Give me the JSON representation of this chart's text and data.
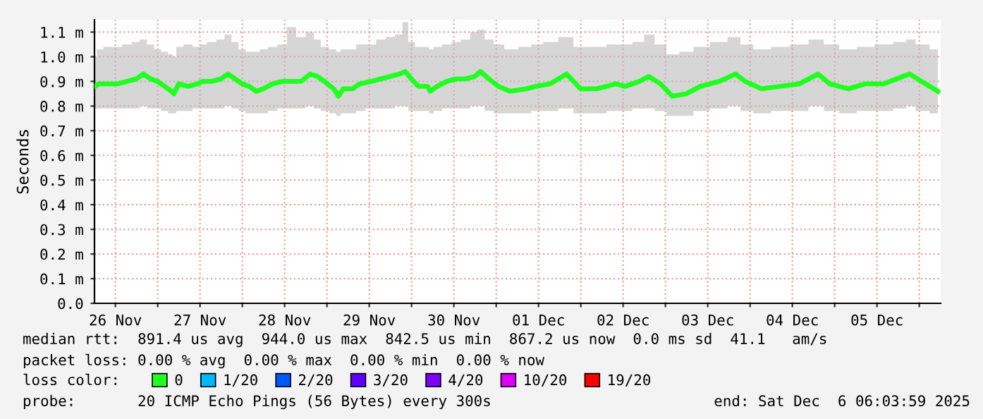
{
  "chart_data": {
    "type": "line",
    "ylabel": "Seconds",
    "legend_title": "loss color:",
    "legend": "bottom",
    "grid": true,
    "marker": "none",
    "line_style": "solid",
    "xlim": [
      "2025-11-26T06:04",
      "2025-12-06T06:04"
    ],
    "xticks": [
      {
        "value": "2025-11-26T12:00",
        "label": "26 Nov"
      },
      {
        "value": "2025-11-27T00:00",
        "label": null
      },
      {
        "value": "2025-11-27T12:00",
        "label": "27 Nov"
      },
      {
        "value": "2025-11-28T00:00",
        "label": null
      },
      {
        "value": "2025-11-28T12:00",
        "label": "28 Nov"
      },
      {
        "value": "2025-11-29T00:00",
        "label": null
      },
      {
        "value": "2025-11-29T12:00",
        "label": "29 Nov"
      },
      {
        "value": "2025-11-30T00:00",
        "label": null
      },
      {
        "value": "2025-11-30T12:00",
        "label": "30 Nov"
      },
      {
        "value": "2025-12-01T00:00",
        "label": null
      },
      {
        "value": "2025-12-01T12:00",
        "label": "01 Dec"
      },
      {
        "value": "2025-12-02T00:00",
        "label": null
      },
      {
        "value": "2025-12-02T12:00",
        "label": "02 Dec"
      },
      {
        "value": "2025-12-03T00:00",
        "label": null
      },
      {
        "value": "2025-12-03T12:00",
        "label": "03 Dec"
      },
      {
        "value": "2025-12-04T00:00",
        "label": null
      },
      {
        "value": "2025-12-04T12:00",
        "label": "04 Dec"
      },
      {
        "value": "2025-12-05T00:00",
        "label": null
      },
      {
        "value": "2025-12-05T12:00",
        "label": "05 Dec"
      },
      {
        "value": "2025-12-06T00:00",
        "label": null
      }
    ],
    "ylim": [
      0,
      1.15
    ],
    "yticks": [
      {
        "value": 0,
        "label": "0.0"
      },
      {
        "value": 0.1,
        "label": "0.1 m"
      },
      {
        "value": 0.2,
        "label": "0.2 m"
      },
      {
        "value": 0.3,
        "label": "0.3 m"
      },
      {
        "value": 0.4,
        "label": "0.4 m"
      },
      {
        "value": 0.5,
        "label": "0.5 m"
      },
      {
        "value": 0.6,
        "label": "0.6 m"
      },
      {
        "value": 0.7,
        "label": "0.7 m"
      },
      {
        "value": 0.8,
        "label": "0.8 m"
      },
      {
        "value": 0.9,
        "label": "0.9 m"
      },
      {
        "value": 1.0,
        "label": "1.0 m"
      },
      {
        "value": 1.1,
        "label": "1.1 m"
      }
    ],
    "x": [
      "2025-11-26T06:10",
      "2025-11-26T07:16",
      "2025-11-26T09:56",
      "2025-11-26T12:36",
      "2025-11-26T15:16",
      "2025-11-26T17:56",
      "2025-11-26T19:56",
      "2025-11-26T21:56",
      "2025-11-26T23:56",
      "2025-11-27T01:56",
      "2025-11-27T03:56",
      "2025-11-27T04:36",
      "2025-11-27T05:56",
      "2025-11-27T08:36",
      "2025-11-27T11:16",
      "2025-11-27T12:36",
      "2025-11-27T15:16",
      "2025-11-27T17:56",
      "2025-11-27T19:56",
      "2025-11-27T21:56",
      "2025-11-27T23:56",
      "2025-11-28T01:56",
      "2025-11-28T03:56",
      "2025-11-28T05:56",
      "2025-11-28T08:36",
      "2025-11-28T11:16",
      "2025-11-28T13:56",
      "2025-11-28T16:36",
      "2025-11-28T19:16",
      "2025-11-28T21:16",
      "2025-11-28T23:16",
      "2025-11-29T01:56",
      "2025-11-29T03:16",
      "2025-11-29T04:36",
      "2025-11-29T07:16",
      "2025-11-29T09:16",
      "2025-11-29T12:36",
      "2025-11-29T15:16",
      "2025-11-29T17:56",
      "2025-11-29T20:36",
      "2025-11-29T22:12",
      "2025-11-29T23:56",
      "2025-11-30T01:56",
      "2025-11-30T04:36",
      "2025-11-30T05:16",
      "2025-11-30T07:16",
      "2025-11-30T09:56",
      "2025-11-30T12:36",
      "2025-11-30T15:16",
      "2025-11-30T17:56",
      "2025-11-30T19:32",
      "2025-11-30T21:56",
      "2025-12-01T00:36",
      "2025-12-01T03:56",
      "2025-12-01T08:36",
      "2025-12-01T11:16",
      "2025-12-01T15:16",
      "2025-12-01T19:56",
      "2025-12-01T23:56",
      "2025-12-02T04:36",
      "2025-12-02T09:56",
      "2025-12-02T12:36",
      "2025-12-02T16:36",
      "2025-12-02T19:16",
      "2025-12-02T22:36",
      "2025-12-03T01:56",
      "2025-12-03T05:56",
      "2025-12-03T09:56",
      "2025-12-03T15:16",
      "2025-12-03T19:56",
      "2025-12-03T22:36",
      "2025-12-04T03:16",
      "2025-12-04T08:36",
      "2025-12-04T13:56",
      "2025-12-04T19:16",
      "2025-12-04T22:36",
      "2025-12-05T03:56",
      "2025-12-05T08:36",
      "2025-12-05T13:56",
      "2025-12-05T19:16",
      "2025-12-05T21:16",
      "2025-12-06T00:36",
      "2025-12-06T05:16"
    ],
    "series": [
      {
        "name": "0",
        "color": "#20ff20",
        "values": [
          0.88,
          0.89,
          0.89,
          0.89,
          0.9,
          0.91,
          0.93,
          0.91,
          0.9,
          0.88,
          0.86,
          0.85,
          0.89,
          0.88,
          0.89,
          0.9,
          0.9,
          0.91,
          0.93,
          0.91,
          0.89,
          0.88,
          0.86,
          0.87,
          0.89,
          0.9,
          0.9,
          0.9,
          0.93,
          0.92,
          0.9,
          0.87,
          0.84,
          0.87,
          0.87,
          0.89,
          0.9,
          0.91,
          0.92,
          0.93,
          0.94,
          0.91,
          0.88,
          0.88,
          0.86,
          0.88,
          0.9,
          0.91,
          0.91,
          0.92,
          0.94,
          0.91,
          0.88,
          0.86,
          0.87,
          0.88,
          0.89,
          0.93,
          0.87,
          0.87,
          0.89,
          0.88,
          0.9,
          0.92,
          0.89,
          0.84,
          0.85,
          0.88,
          0.9,
          0.93,
          0.9,
          0.87,
          0.88,
          0.89,
          0.93,
          0.89,
          0.87,
          0.89,
          0.89,
          0.92,
          0.93,
          0.9,
          0.86
        ],
        "lower": [
          0.79,
          0.79,
          0.79,
          0.79,
          0.79,
          0.79,
          0.8,
          0.79,
          0.79,
          0.78,
          0.77,
          0.77,
          0.78,
          0.78,
          0.79,
          0.79,
          0.79,
          0.79,
          0.8,
          0.79,
          0.78,
          0.77,
          0.77,
          0.77,
          0.78,
          0.79,
          0.79,
          0.79,
          0.8,
          0.79,
          0.78,
          0.77,
          0.76,
          0.77,
          0.77,
          0.78,
          0.79,
          0.79,
          0.79,
          0.8,
          0.8,
          0.78,
          0.78,
          0.78,
          0.77,
          0.78,
          0.79,
          0.79,
          0.79,
          0.8,
          0.8,
          0.78,
          0.77,
          0.77,
          0.77,
          0.78,
          0.78,
          0.79,
          0.77,
          0.77,
          0.78,
          0.78,
          0.79,
          0.79,
          0.78,
          0.76,
          0.76,
          0.78,
          0.79,
          0.8,
          0.78,
          0.77,
          0.78,
          0.78,
          0.8,
          0.78,
          0.77,
          0.78,
          0.78,
          0.79,
          0.8,
          0.78,
          0.77
        ],
        "upper": [
          1.0,
          1.03,
          1.04,
          1.04,
          1.05,
          1.06,
          1.07,
          1.05,
          1.03,
          1.02,
          1.01,
          1.0,
          1.04,
          1.05,
          1.04,
          1.05,
          1.06,
          1.07,
          1.09,
          1.06,
          1.03,
          1.02,
          1.02,
          1.03,
          1.04,
          1.05,
          1.12,
          1.08,
          1.1,
          1.07,
          1.04,
          1.03,
          1.02,
          1.03,
          1.03,
          1.05,
          1.05,
          1.07,
          1.08,
          1.09,
          1.14,
          1.06,
          1.04,
          1.04,
          1.03,
          1.04,
          1.05,
          1.06,
          1.07,
          1.1,
          1.11,
          1.07,
          1.05,
          1.03,
          1.04,
          1.05,
          1.06,
          1.08,
          1.04,
          1.04,
          1.05,
          1.05,
          1.06,
          1.09,
          1.05,
          1.01,
          1.02,
          1.04,
          1.06,
          1.08,
          1.05,
          1.03,
          1.04,
          1.05,
          1.07,
          1.05,
          1.03,
          1.04,
          1.05,
          1.06,
          1.07,
          1.05,
          1.03
        ]
      },
      {
        "name": "1/20",
        "color": "#00b8ff",
        "values": [
          null,
          null,
          null,
          null,
          null,
          null,
          null,
          null,
          null,
          null,
          null,
          null,
          null,
          null,
          null,
          null,
          null,
          null,
          null,
          null,
          null,
          null,
          null,
          null,
          null,
          null,
          null,
          null,
          null,
          null,
          null,
          null,
          null,
          null,
          null,
          null,
          null,
          null,
          null,
          null,
          null,
          null,
          null,
          null,
          null,
          null,
          null,
          null,
          null,
          null,
          null,
          null,
          null,
          null,
          null,
          null,
          null,
          null,
          null,
          null,
          null,
          null,
          null,
          null,
          null,
          null,
          null,
          null,
          null,
          null,
          null,
          null,
          null,
          null,
          null,
          null,
          null,
          null,
          null,
          null,
          null,
          null,
          null
        ]
      },
      {
        "name": "2/20",
        "color": "#0059ff",
        "values": [
          null,
          null,
          null,
          null,
          null,
          null,
          null,
          null,
          null,
          null,
          null,
          null,
          null,
          null,
          null,
          null,
          null,
          null,
          null,
          null,
          null,
          null,
          null,
          null,
          null,
          null,
          null,
          null,
          null,
          null,
          null,
          null,
          null,
          null,
          null,
          null,
          null,
          null,
          null,
          null,
          null,
          null,
          null,
          null,
          null,
          null,
          null,
          null,
          null,
          null,
          null,
          null,
          null,
          null,
          null,
          null,
          null,
          null,
          null,
          null,
          null,
          null,
          null,
          null,
          null,
          null,
          null,
          null,
          null,
          null,
          null,
          null,
          null,
          null,
          null,
          null,
          null,
          null,
          null,
          null,
          null,
          null,
          null
        ]
      },
      {
        "name": "3/20",
        "color": "#5e00ff",
        "values": [
          null,
          null,
          null,
          null,
          null,
          null,
          null,
          null,
          null,
          null,
          null,
          null,
          null,
          null,
          null,
          null,
          null,
          null,
          null,
          null,
          null,
          null,
          null,
          null,
          null,
          null,
          null,
          null,
          null,
          null,
          null,
          null,
          null,
          null,
          null,
          null,
          null,
          null,
          null,
          null,
          null,
          null,
          null,
          null,
          null,
          null,
          null,
          null,
          null,
          null,
          null,
          null,
          null,
          null,
          null,
          null,
          null,
          null,
          null,
          null,
          null,
          null,
          null,
          null,
          null,
          null,
          null,
          null,
          null,
          null,
          null,
          null,
          null,
          null,
          null,
          null,
          null,
          null,
          null,
          null,
          null,
          null,
          null
        ]
      },
      {
        "name": "4/20",
        "color": "#7e00ff",
        "values": [
          null,
          null,
          null,
          null,
          null,
          null,
          null,
          null,
          null,
          null,
          null,
          null,
          null,
          null,
          null,
          null,
          null,
          null,
          null,
          null,
          null,
          null,
          null,
          null,
          null,
          null,
          null,
          null,
          null,
          null,
          null,
          null,
          null,
          null,
          null,
          null,
          null,
          null,
          null,
          null,
          null,
          null,
          null,
          null,
          null,
          null,
          null,
          null,
          null,
          null,
          null,
          null,
          null,
          null,
          null,
          null,
          null,
          null,
          null,
          null,
          null,
          null,
          null,
          null,
          null,
          null,
          null,
          null,
          null,
          null,
          null,
          null,
          null,
          null,
          null,
          null,
          null,
          null,
          null,
          null,
          null,
          null,
          null
        ]
      },
      {
        "name": "10/20",
        "color": "#dd00ff",
        "values": [
          null,
          null,
          null,
          null,
          null,
          null,
          null,
          null,
          null,
          null,
          null,
          null,
          null,
          null,
          null,
          null,
          null,
          null,
          null,
          null,
          null,
          null,
          null,
          null,
          null,
          null,
          null,
          null,
          null,
          null,
          null,
          null,
          null,
          null,
          null,
          null,
          null,
          null,
          null,
          null,
          null,
          null,
          null,
          null,
          null,
          null,
          null,
          null,
          null,
          null,
          null,
          null,
          null,
          null,
          null,
          null,
          null,
          null,
          null,
          null,
          null,
          null,
          null,
          null,
          null,
          null,
          null,
          null,
          null,
          null,
          null,
          null,
          null,
          null,
          null,
          null,
          null,
          null,
          null,
          null,
          null,
          null,
          null
        ]
      },
      {
        "name": "19/20",
        "color": "#ff0000",
        "values": [
          null,
          null,
          null,
          null,
          null,
          null,
          null,
          null,
          null,
          null,
          null,
          null,
          null,
          null,
          null,
          null,
          null,
          null,
          null,
          null,
          null,
          null,
          null,
          null,
          null,
          null,
          null,
          null,
          null,
          null,
          null,
          null,
          null,
          null,
          null,
          null,
          null,
          null,
          null,
          null,
          null,
          null,
          null,
          null,
          null,
          null,
          null,
          null,
          null,
          null,
          null,
          null,
          null,
          null,
          null,
          null,
          null,
          null,
          null,
          null,
          null,
          null,
          null,
          null,
          null,
          null,
          null,
          null,
          null,
          null,
          null,
          null,
          null,
          null,
          null,
          null,
          null,
          null,
          null,
          null,
          null,
          null,
          null
        ]
      }
    ],
    "annotations": [
      "median rtt:  891.4 us avg  944.0 us max  842.5 us min  867.2 us now  0.0 ms sd  41.1   am/s",
      "packet loss: 0.00 % avg  0.00 % max  0.00 % min  0.00 % now",
      "probe:       20 ICMP Echo Pings (56 Bytes) every 300s",
      "end: Sat Dec  6 06:03:59 2025"
    ]
  }
}
